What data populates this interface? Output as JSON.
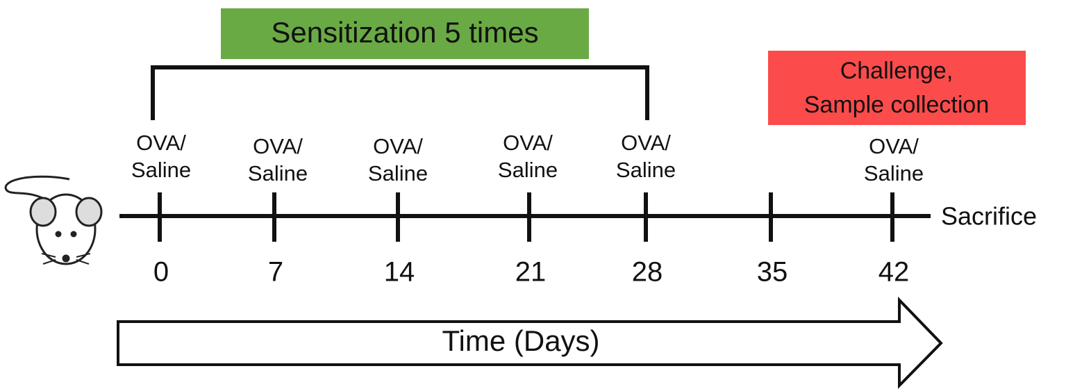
{
  "sensitization": {
    "label": "Sensitization 5 times"
  },
  "challenge": {
    "lines": [
      "Challenge,",
      "Sample collection"
    ]
  },
  "injections": [
    {
      "lines": [
        "OVA/",
        "Saline"
      ]
    },
    {
      "lines": [
        "OVA/",
        "Saline"
      ]
    },
    {
      "lines": [
        "OVA/",
        "Saline"
      ]
    },
    {
      "lines": [
        "OVA/",
        "Saline"
      ]
    },
    {
      "lines": [
        "OVA/",
        "Saline"
      ]
    },
    {
      "lines": [
        "OVA/",
        "Saline"
      ]
    }
  ],
  "timeline": {
    "days": [
      "0",
      "7",
      "14",
      "21",
      "28",
      "35",
      "42"
    ],
    "endpoint": "Sacrifice"
  },
  "time_arrow": {
    "label": "Time (Days)"
  }
}
